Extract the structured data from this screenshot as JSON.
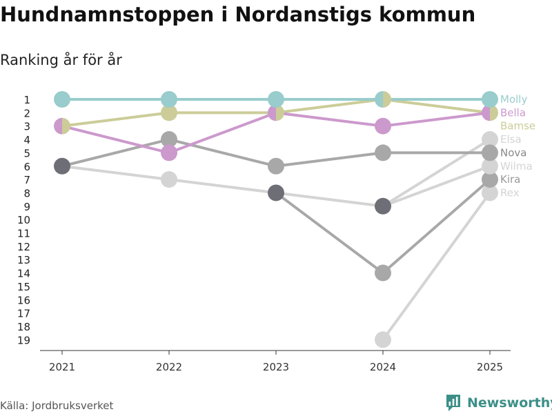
{
  "chart_data": {
    "type": "line",
    "title": "Hundnamnstoppen i Nordanstigs kommun",
    "subtitle": "Ranking år för år",
    "x": [
      "2021",
      "2022",
      "2023",
      "2024",
      "2025"
    ],
    "y_ticks": [
      1,
      2,
      3,
      4,
      5,
      6,
      7,
      8,
      9,
      10,
      11,
      12,
      13,
      14,
      15,
      16,
      17,
      18,
      19
    ],
    "ylim": [
      1,
      19
    ],
    "y_inverted": true,
    "series": [
      {
        "name": "Rex",
        "color": "#d4d4d4",
        "values": [
          null,
          null,
          null,
          19,
          8
        ]
      },
      {
        "name": "Kira",
        "color": "#a8a8a8",
        "values": [
          null,
          null,
          8,
          14,
          7
        ]
      },
      {
        "name": "Wilma",
        "color": "#d4d4d4",
        "values": [
          6,
          7,
          8,
          9,
          6
        ]
      },
      {
        "name": "Elsa",
        "color": "#d4d4d4",
        "values": [
          null,
          null,
          null,
          9,
          4
        ]
      },
      {
        "name": "Nova",
        "color": "#a8a8a8",
        "values": [
          6,
          4,
          6,
          5,
          5
        ]
      },
      {
        "name": "Bamse",
        "color": "#cccc99",
        "values": [
          3,
          2,
          2,
          1,
          2
        ]
      },
      {
        "name": "Bella",
        "color": "#cc99cc",
        "values": [
          3,
          5,
          2,
          3,
          2
        ]
      },
      {
        "name": "Molly",
        "color": "#99cccc",
        "values": [
          1,
          1,
          1,
          1,
          1
        ]
      }
    ],
    "legend": [
      "Molly",
      "Bella",
      "Bamse",
      "Elsa",
      "Nova",
      "Wilma",
      "Kira",
      "Rex"
    ]
  },
  "footer": {
    "source": "Källa: Jordbruksverket",
    "brand": "Newsworthy"
  },
  "colors": {
    "dark_point": "#6e6e76",
    "brand": "#3b8f87"
  }
}
